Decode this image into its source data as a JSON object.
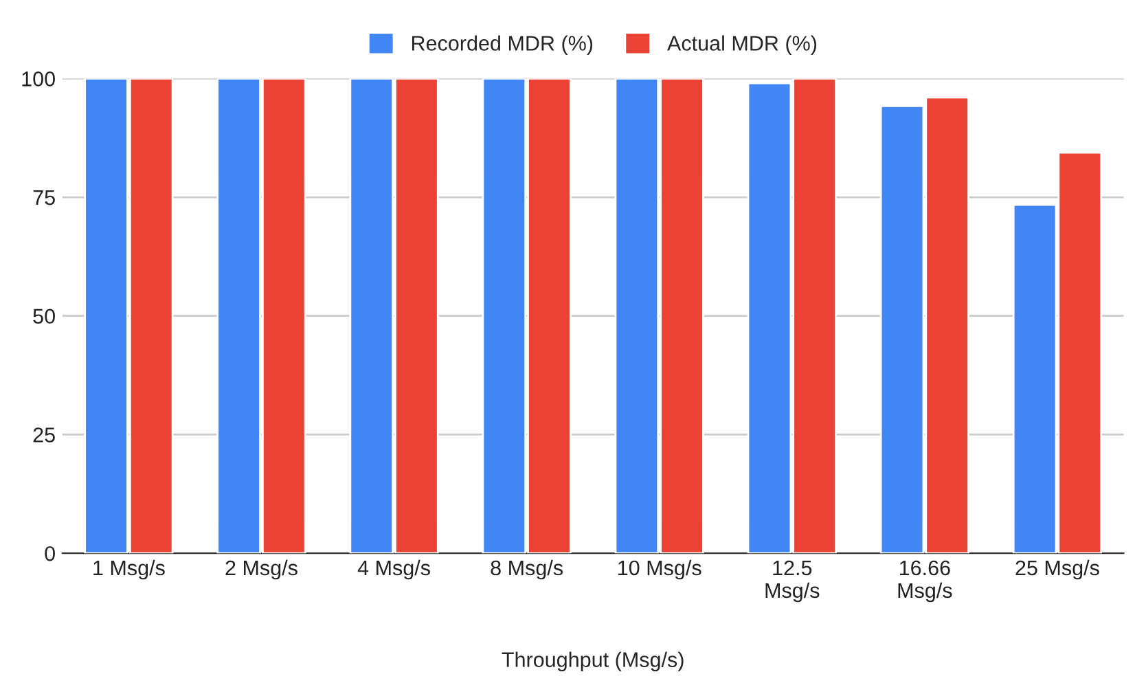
{
  "chart_data": {
    "type": "bar",
    "xlabel": "Throughput (Msg/s)",
    "categories": [
      "1 Msg/s",
      "2 Msg/s",
      "4 Msg/s",
      "8 Msg/s",
      "10 Msg/s",
      "12.5 Msg/s",
      "16.66 Msg/s",
      "25 Msg/s"
    ],
    "series": [
      {
        "name": "Recorded MDR (%)",
        "color": "#4285f4",
        "values": [
          100,
          100,
          100,
          100,
          100,
          99,
          94.2,
          73.4
        ]
      },
      {
        "name": "Actual MDR (%)",
        "color": "#ea4335",
        "values": [
          100,
          100,
          100,
          100,
          100,
          100,
          96,
          84.4
        ]
      }
    ],
    "ylim": [
      0,
      100
    ],
    "yticks": [
      0,
      25,
      50,
      75,
      100
    ],
    "grid": "y",
    "legend": "top"
  }
}
